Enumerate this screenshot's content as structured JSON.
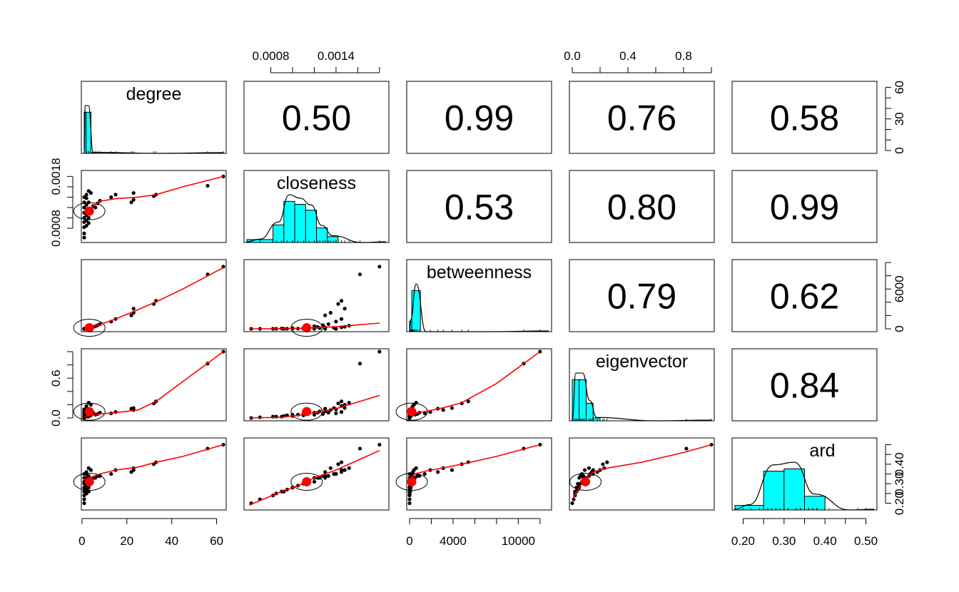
{
  "chart_data": {
    "type": "scatter-matrix",
    "variables": [
      "degree",
      "closeness",
      "betweenness",
      "eigenvector",
      "ard"
    ],
    "ranges": {
      "degree": [
        1,
        63
      ],
      "closeness": [
        0.00058,
        0.00186
      ],
      "betweenness": [
        0,
        12800
      ],
      "eigenvector": [
        0,
        1.0
      ],
      "ard": [
        0.18,
        0.52
      ]
    },
    "ticks": {
      "degree": {
        "side": "bottom",
        "values": [
          0,
          20,
          40,
          60
        ],
        "labels": [
          "0",
          "20",
          "40",
          "60"
        ]
      },
      "closeness": {
        "side": "top",
        "values": [
          0.0008,
          0.001,
          0.0012,
          0.0014,
          0.0016,
          0.0018
        ],
        "labels": [
          "0.0008",
          "",
          "",
          "0.0014",
          "",
          ""
        ]
      },
      "betweenness": {
        "side": "bottom",
        "values": [
          0,
          2000,
          4000,
          6000,
          8000,
          10000,
          12000
        ],
        "labels": [
          "0",
          "",
          "4000",
          "",
          "",
          "10000",
          ""
        ]
      },
      "eigenvector": {
        "side": "top",
        "values": [
          0.0,
          0.2,
          0.4,
          0.6,
          0.8,
          1.0
        ],
        "labels": [
          "0.0",
          "",
          "0.4",
          "",
          "0.8",
          ""
        ]
      },
      "ard": {
        "side": "bottom",
        "values": [
          0.2,
          0.25,
          0.3,
          0.35,
          0.4,
          0.45,
          0.5
        ],
        "labels": [
          "0.20",
          "",
          "0.30",
          "",
          "0.40",
          "",
          "0.50"
        ]
      }
    },
    "left_axes": {
      "closeness": {
        "values": [
          0.0008,
          0.001,
          0.0012,
          0.0014,
          0.0016,
          0.0018
        ],
        "labels": [
          "0.0008",
          "",
          "",
          "",
          "",
          "0.0018"
        ]
      },
      "eigenvector": {
        "values": [
          0.0,
          0.2,
          0.4,
          0.6,
          0.8,
          1.0
        ],
        "labels": [
          "0.0",
          "",
          "",
          "0.6",
          "",
          ""
        ]
      }
    },
    "right_axes": {
      "degree": {
        "range": [
          0,
          63
        ],
        "values": [
          0,
          10,
          20,
          30,
          40,
          50,
          60
        ],
        "labels": [
          "0",
          "",
          "",
          "30",
          "",
          "",
          "60"
        ]
      },
      "betweenness": {
        "range": [
          0,
          10000
        ],
        "values": [
          0,
          2000,
          4000,
          6000,
          8000,
          10000
        ],
        "labels": [
          "0",
          "",
          "",
          "6000",
          "",
          ""
        ]
      },
      "ard": {
        "range": [
          0.18,
          0.52
        ],
        "values": [
          0.2,
          0.25,
          0.3,
          0.35,
          0.4,
          0.45,
          0.5
        ],
        "labels": [
          "0.20",
          "",
          "0.30",
          "",
          "0.40",
          "",
          ""
        ]
      }
    },
    "histograms": {
      "degree": {
        "bins": [
          [
            1,
            1.8,
            44
          ],
          [
            1.8,
            4,
            44
          ],
          [
            4,
            6,
            1
          ],
          [
            6,
            63,
            0
          ]
        ]
      },
      "closeness": {
        "bins": [
          [
            0.00058,
            0.00082,
            2
          ],
          [
            0.00082,
            0.00092,
            12
          ],
          [
            0.00092,
            0.00102,
            28
          ],
          [
            0.00102,
            0.00112,
            26
          ],
          [
            0.00112,
            0.00122,
            22
          ],
          [
            0.00122,
            0.00132,
            10
          ],
          [
            0.00132,
            0.00142,
            4
          ],
          [
            0.00142,
            0.00186,
            0
          ]
        ]
      },
      "betweenness": {
        "bins": [
          [
            0,
            200,
            10
          ],
          [
            200,
            1000,
            40
          ],
          [
            1000,
            2000,
            0
          ],
          [
            2000,
            12800,
            0
          ]
        ]
      },
      "eigenvector": {
        "bins": [
          [
            0,
            0.05,
            7
          ],
          [
            0.05,
            0.1,
            7
          ],
          [
            0.1,
            0.15,
            3
          ],
          [
            0.15,
            0.2,
            0.5
          ],
          [
            0.2,
            1.0,
            0
          ]
        ]
      },
      "ard": {
        "bins": [
          [
            0.18,
            0.25,
            1
          ],
          [
            0.25,
            0.3,
            8.5
          ],
          [
            0.3,
            0.35,
            9
          ],
          [
            0.35,
            0.4,
            3
          ],
          [
            0.4,
            0.52,
            0
          ]
        ]
      }
    },
    "correlations": [
      {
        "row": "degree",
        "col": "closeness",
        "value": "0.50"
      },
      {
        "row": "degree",
        "col": "betweenness",
        "value": "0.99"
      },
      {
        "row": "degree",
        "col": "eigenvector",
        "value": "0.76"
      },
      {
        "row": "degree",
        "col": "ard",
        "value": "0.58"
      },
      {
        "row": "closeness",
        "col": "betweenness",
        "value": "0.53"
      },
      {
        "row": "closeness",
        "col": "eigenvector",
        "value": "0.80"
      },
      {
        "row": "closeness",
        "col": "ard",
        "value": "0.99"
      },
      {
        "row": "betweenness",
        "col": "eigenvector",
        "value": "0.79"
      },
      {
        "row": "betweenness",
        "col": "ard",
        "value": "0.62"
      },
      {
        "row": "eigenvector",
        "col": "ard",
        "value": "0.84"
      }
    ],
    "points": [
      {
        "degree": 63,
        "closeness": 0.0018,
        "betweenness": 12000,
        "eigenvector": 1.0,
        "ard": 0.5
      },
      {
        "degree": 56,
        "closeness": 0.00162,
        "betweenness": 10500,
        "eigenvector": 0.82,
        "ard": 0.48
      },
      {
        "degree": 33,
        "closeness": 0.00145,
        "betweenness": 5400,
        "eigenvector": 0.25,
        "ard": 0.41
      },
      {
        "degree": 32,
        "closeness": 0.00142,
        "betweenness": 4800,
        "eigenvector": 0.22,
        "ard": 0.4
      },
      {
        "degree": 23,
        "closeness": 0.00148,
        "betweenness": 3900,
        "eigenvector": 0.15,
        "ard": 0.37
      },
      {
        "degree": 23,
        "closeness": 0.00135,
        "betweenness": 3100,
        "eigenvector": 0.12,
        "ard": 0.38
      },
      {
        "degree": 22,
        "closeness": 0.0013,
        "betweenness": 2600,
        "eigenvector": 0.14,
        "ard": 0.36
      },
      {
        "degree": 15,
        "closeness": 0.00145,
        "betweenness": 1900,
        "eigenvector": 0.09,
        "ard": 0.37
      },
      {
        "degree": 13,
        "closeness": 0.0014,
        "betweenness": 1400,
        "eigenvector": 0.07,
        "ard": 0.35
      },
      {
        "degree": 8,
        "closeness": 0.00133,
        "betweenness": 900,
        "eigenvector": 0.08,
        "ard": 0.34
      },
      {
        "degree": 7,
        "closeness": 0.00128,
        "betweenness": 700,
        "eigenvector": 0.06,
        "ard": 0.34
      },
      {
        "degree": 6,
        "closeness": 0.0012,
        "betweenness": 500,
        "eigenvector": 0.05,
        "ard": 0.33
      },
      {
        "degree": 5,
        "closeness": 0.00123,
        "betweenness": 350,
        "eigenvector": 0.08,
        "ard": 0.33
      },
      {
        "degree": 4,
        "closeness": 0.00148,
        "betweenness": 400,
        "eigenvector": 0.2,
        "ard": 0.37
      },
      {
        "degree": 4,
        "closeness": 0.0011,
        "betweenness": 180,
        "eigenvector": 0.04,
        "ard": 0.3
      },
      {
        "degree": 3,
        "closeness": 0.00152,
        "betweenness": 600,
        "eigenvector": 0.23,
        "ard": 0.38
      },
      {
        "degree": 3,
        "closeness": 0.0013,
        "betweenness": 250,
        "eigenvector": 0.12,
        "ard": 0.34
      },
      {
        "degree": 3,
        "closeness": 0.001,
        "betweenness": 120,
        "eigenvector": 0.03,
        "ard": 0.28
      },
      {
        "degree": 3,
        "closeness": 0.0009,
        "betweenness": 60,
        "eigenvector": 0.02,
        "ard": 0.26
      },
      {
        "degree": 2,
        "closeness": 0.00145,
        "betweenness": 300,
        "eigenvector": 0.18,
        "ard": 0.36
      },
      {
        "degree": 2,
        "closeness": 0.00138,
        "betweenness": 200,
        "eigenvector": 0.15,
        "ard": 0.35
      },
      {
        "degree": 2,
        "closeness": 0.00125,
        "betweenness": 150,
        "eigenvector": 0.1,
        "ard": 0.33
      },
      {
        "degree": 2,
        "closeness": 0.00115,
        "betweenness": 90,
        "eigenvector": 0.07,
        "ard": 0.31
      },
      {
        "degree": 2,
        "closeness": 0.00105,
        "betweenness": 40,
        "eigenvector": 0.05,
        "ard": 0.29
      },
      {
        "degree": 2,
        "closeness": 0.00095,
        "betweenness": 20,
        "eigenvector": 0.04,
        "ard": 0.27
      },
      {
        "degree": 2,
        "closeness": 0.00085,
        "betweenness": 10,
        "eigenvector": 0.02,
        "ard": 0.25
      },
      {
        "degree": 1,
        "closeness": 0.0014,
        "betweenness": 0,
        "eigenvector": 0.13,
        "ard": 0.35
      },
      {
        "degree": 1,
        "closeness": 0.0013,
        "betweenness": 0,
        "eigenvector": 0.1,
        "ard": 0.33
      },
      {
        "degree": 1,
        "closeness": 0.0012,
        "betweenness": 0,
        "eigenvector": 0.08,
        "ard": 0.31
      },
      {
        "degree": 1,
        "closeness": 0.0011,
        "betweenness": 0,
        "eigenvector": 0.06,
        "ard": 0.3
      },
      {
        "degree": 1,
        "closeness": 0.001,
        "betweenness": 0,
        "eigenvector": 0.05,
        "ard": 0.28
      },
      {
        "degree": 1,
        "closeness": 0.00092,
        "betweenness": 0,
        "eigenvector": 0.03,
        "ard": 0.26
      },
      {
        "degree": 1,
        "closeness": 0.00082,
        "betweenness": 0,
        "eigenvector": 0.02,
        "ard": 0.24
      },
      {
        "degree": 1,
        "closeness": 0.0007,
        "betweenness": 0,
        "eigenvector": 0.01,
        "ard": 0.22
      },
      {
        "degree": 1,
        "closeness": 0.00062,
        "betweenness": 0,
        "eigenvector": 0.0,
        "ard": 0.2
      }
    ],
    "means": {
      "degree": 3.3,
      "closeness": 0.00113,
      "betweenness": 200,
      "eigenvector": 0.095,
      "ard": 0.31
    },
    "trend_x": {
      "degree": [
        1,
        8,
        15,
        25,
        33,
        45,
        63
      ],
      "closeness": [
        0.0006,
        0.0009,
        0.0011,
        0.0012,
        0.0014,
        0.0018
      ],
      "betweenness": [
        0,
        500,
        1500,
        3000,
        4800,
        8000,
        12000
      ],
      "eigenvector": [
        0.0,
        0.05,
        0.1,
        0.15,
        0.25,
        0.5,
        0.8,
        1.0
      ]
    },
    "trends": {
      "closeness|degree": [
        0.0011,
        0.00132,
        0.00137,
        0.0014,
        0.00145,
        0.0016,
        0.0018
      ],
      "betweenness|degree": [
        0,
        800,
        1900,
        3700,
        5200,
        7700,
        11800
      ],
      "eigenvector|degree": [
        0.02,
        0.06,
        0.08,
        0.12,
        0.25,
        0.55,
        1.0
      ],
      "ard|degree": [
        0.32,
        0.35,
        0.37,
        0.385,
        0.41,
        0.44,
        0.5
      ],
      "betweenness|closeness": [
        0,
        20,
        120,
        200,
        400,
        1100
      ],
      "eigenvector|closeness": [
        0.0,
        0.01,
        0.05,
        0.08,
        0.14,
        0.34
      ],
      "ard|closeness": [
        0.19,
        0.26,
        0.3,
        0.33,
        0.37,
        0.47
      ],
      "eigenvector|betweenness": [
        0.03,
        0.07,
        0.1,
        0.15,
        0.23,
        0.52,
        1.0
      ],
      "ard|betweenness": [
        0.32,
        0.35,
        0.365,
        0.38,
        0.4,
        0.44,
        0.5
      ],
      "ard|eigenvector": [
        0.22,
        0.28,
        0.33,
        0.36,
        0.38,
        0.41,
        0.46,
        0.5
      ]
    },
    "colors": {
      "histogram_fill": "#00FFFF",
      "points": "#000000",
      "trend_line": "#FF0000",
      "mean_point": "#FF0000",
      "frame": "#000000"
    }
  }
}
